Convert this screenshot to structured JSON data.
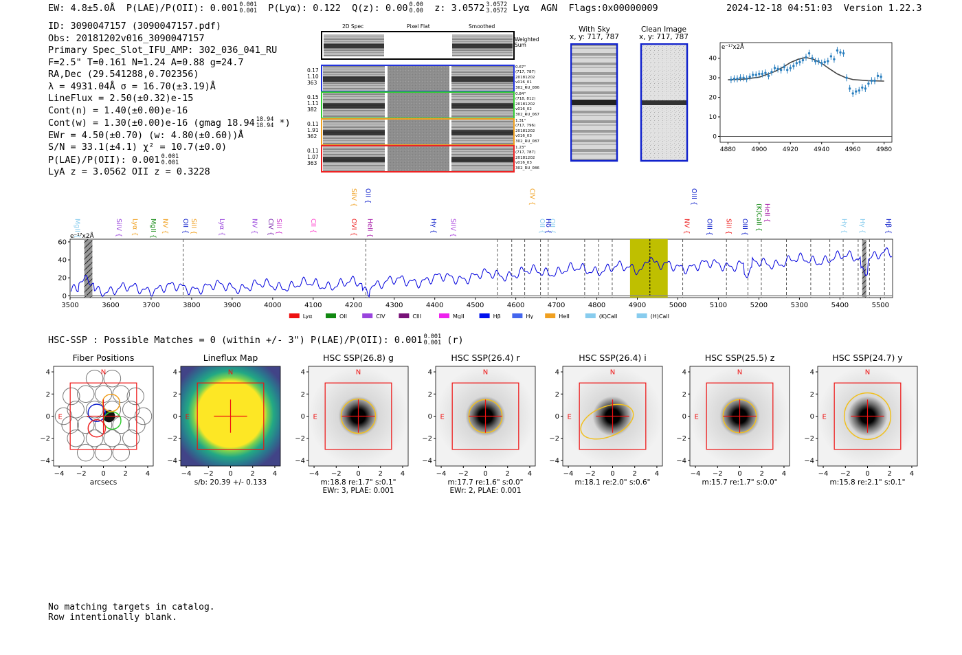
{
  "header": {
    "ew": "EW: 4.8±5.0Å",
    "plae_label": "P(LAE)/P(OII): 0.001",
    "plae_hi": "0.001",
    "plae_lo": "0.001",
    "plya": "P(Lyα): 0.122",
    "qz_label": "Q(z): 0.00",
    "qz_hi": "0.00",
    "qz_lo": "0.00",
    "z_label": "z: 3.0572",
    "z_hi": "3.0572",
    "z_lo": "3.0572",
    "line": "Lyα",
    "agn": "AGN",
    "flags": "Flags:0x00000009",
    "timestamp": "2024-12-18 04:51:03",
    "version": "Version 1.22.3"
  },
  "info": {
    "id": "ID: 3090047157 (3090047157.pdf)",
    "obs": "Obs: 20181202v016_3090047157",
    "primary": "Primary Spec_Slot_IFU_AMP: 302_036_041_RU",
    "params": "F=2.5\"  T=0.161  N=1.24  A=0.88  g=24.7",
    "radec": "RA,Dec (29.541288,0.702356)",
    "lambda": "λ = 4931.04Å   σ = 16.70(±3.19)Å",
    "lineflux": "LineFlux = 2.50(±0.32)e-15",
    "contn": "Cont(n) = 1.40(±0.00)e-16",
    "contw": "Cont(w) = 1.30(±0.00)e-16 (gmag 18.94",
    "contw_hi": "18.94",
    "contw_lo": "18.94",
    "contw_tail": "*)",
    "ewr": "EWr = 4.50(±0.70) (w: 4.80(±0.60))Å",
    "sn": "S/N = 33.1(±4.1)  χ² = 10.7(±0.0)",
    "plae": "P(LAE)/P(OII): 0.001",
    "plae_hi": "0.001",
    "plae_lo": "0.001",
    "lyaz": "LyA z = 3.0562  OII z = 0.3228"
  },
  "cutouts": {
    "col_titles": [
      "2D Spec",
      "Pixel Flat",
      "Smoothed"
    ],
    "weighted_sum": "Weighted Sum",
    "rows": [
      {
        "left": [
          "0.17",
          "1.10",
          "363"
        ],
        "right": [
          "0.67\"",
          "(717, 787)",
          "20181202",
          "v016_01",
          "302_RU_086"
        ],
        "color": "#2233dd"
      },
      {
        "left": [
          "0.15",
          "1.11",
          "382"
        ],
        "right": [
          "0.84\"",
          "(718, 812)",
          "20181202",
          "v016_02",
          "302_RU_067"
        ],
        "color": "#33cc33"
      },
      {
        "left": [
          "0.11",
          "1.91",
          "362"
        ],
        "right": [
          "1.31\"",
          "(717, 796)",
          "20181202",
          "v016_03",
          "302_RU_087"
        ],
        "color": "#f0a020"
      },
      {
        "left": [
          "0.11",
          "1.07",
          "363"
        ],
        "right": [
          "1.23\"",
          "(717, 787)",
          "20181202",
          "v016_03",
          "302_RU_086"
        ],
        "color": "#ee2222"
      }
    ],
    "with_sky_title": "With Sky",
    "with_sky_coords": "x, y: 717, 787",
    "clean_title": "Clean Image",
    "clean_coords": "x, y: 717, 787"
  },
  "fit_chart_data": {
    "type": "scatter",
    "unit_label": "e⁻¹⁷x2Å",
    "xlim": [
      4875,
      4985
    ],
    "ylim": [
      -3,
      48
    ],
    "xticks": [
      4880,
      4900,
      4920,
      4940,
      4960,
      4980
    ],
    "yticks": [
      0,
      10,
      20,
      30,
      40
    ],
    "points_x": [
      4882,
      4884,
      4886,
      4888,
      4890,
      4892,
      4894,
      4896,
      4898,
      4900,
      4902,
      4904,
      4906,
      4908,
      4910,
      4912,
      4914,
      4916,
      4918,
      4920,
      4922,
      4924,
      4926,
      4928,
      4930,
      4932,
      4934,
      4936,
      4938,
      4940,
      4942,
      4944,
      4946,
      4948,
      4950,
      4952,
      4954,
      4956,
      4958,
      4960,
      4962,
      4964,
      4966,
      4968,
      4970,
      4972,
      4974,
      4976,
      4978
    ],
    "points_y": [
      29,
      29.5,
      29.5,
      30,
      30,
      29.5,
      30.5,
      31.5,
      31.5,
      32,
      32,
      32.5,
      31,
      33,
      35,
      34.5,
      34,
      35.5,
      34,
      35,
      36,
      37.5,
      38,
      39,
      40.5,
      42.5,
      40,
      38.5,
      38.5,
      37.5,
      38,
      38.5,
      41,
      39.5,
      44,
      43,
      42.5,
      30,
      24.5,
      22,
      23,
      23.5,
      25,
      24.5,
      27,
      28.5,
      28.5,
      31,
      30.5
    ],
    "fit_x": [
      4880,
      4890,
      4900,
      4910,
      4915,
      4920,
      4925,
      4930,
      4935,
      4940,
      4945,
      4950,
      4955,
      4960,
      4970,
      4980
    ],
    "fit_y": [
      29,
      29.3,
      30.3,
      33.2,
      35.3,
      37.8,
      39.5,
      40.4,
      39.4,
      37.4,
      34.6,
      32.0,
      30.2,
      29.1,
      28.5,
      28.3
    ]
  },
  "spectrum_chart_data": {
    "type": "line",
    "unit_label": "e⁻¹⁷x2Å",
    "xlim": [
      3500,
      5530
    ],
    "ylim": [
      -2,
      63
    ],
    "xticks": [
      3500,
      3600,
      3700,
      3800,
      3900,
      4000,
      4100,
      4200,
      4300,
      4400,
      4500,
      4600,
      4700,
      4800,
      4900,
      5000,
      5100,
      5200,
      5300,
      5400,
      5500
    ],
    "yticks": [
      0,
      20,
      40,
      60
    ],
    "highlight_band": [
      4882,
      4975
    ],
    "masked_bands": [
      [
        3535,
        3555
      ],
      [
        5455,
        5465
      ]
    ],
    "emission_center": 4931,
    "vlines": [
      3779,
      4230,
      4555,
      4590,
      4622,
      4661,
      4680,
      4770,
      4805,
      4838,
      5012,
      5120,
      5173,
      5206,
      5268,
      5328,
      5375,
      5408,
      5445,
      5473,
      5510
    ],
    "line_labels": [
      {
        "x": 3508,
        "text": "MgII",
        "color": "#88ccee",
        "row": 2
      },
      {
        "x": 3610,
        "text": "SiIV",
        "color": "#9944dd",
        "row": 2
      },
      {
        "x": 3650,
        "text": "Lyα",
        "color": "#f0a020",
        "row": 2
      },
      {
        "x": 3695,
        "text": "MgII",
        "color": "#118811",
        "row": 2
      },
      {
        "x": 3725,
        "text": "NV",
        "color": "#f0a020",
        "row": 2
      },
      {
        "x": 3775,
        "text": "OII",
        "color": "#1122cc",
        "row": 2
      },
      {
        "x": 3795,
        "text": "SiII",
        "color": "#f0a020",
        "row": 2
      },
      {
        "x": 3865,
        "text": "Lyα",
        "color": "#9944dd",
        "row": 2
      },
      {
        "x": 3945,
        "text": "NV",
        "color": "#9944dd",
        "row": 2
      },
      {
        "x": 3985,
        "text": "CIV",
        "color": "#7722aa",
        "row": 2
      },
      {
        "x": 4005,
        "text": "SiII",
        "color": "#cc33cc",
        "row": 2
      },
      {
        "x": 4090,
        "text": "CII",
        "color": "#ff44cc",
        "row": 2
      },
      {
        "x": 4190,
        "text": "OVI",
        "color": "#ee2222",
        "row": 2
      },
      {
        "x": 4230,
        "text": "HeII",
        "color": "#aa22aa",
        "row": 2
      },
      {
        "x": 4190,
        "text": "SiIV",
        "color": "#f0a020",
        "row": 0
      },
      {
        "x": 4225,
        "text": "OII",
        "color": "#1122cc",
        "row": 0
      },
      {
        "x": 4387,
        "text": "Hγ",
        "color": "#1122cc",
        "row": 2
      },
      {
        "x": 4435,
        "text": "SiIV",
        "color": "#aa44dd",
        "row": 2
      },
      {
        "x": 4630,
        "text": "CIV",
        "color": "#f0a020",
        "row": 0
      },
      {
        "x": 4655,
        "text": "OII",
        "color": "#88ccee",
        "row": 2
      },
      {
        "x": 4680,
        "text": "OII",
        "color": "#88ccee",
        "row": 2
      },
      {
        "x": 4670,
        "text": "Hδ",
        "color": "#1122cc",
        "row": 2
      },
      {
        "x": 5030,
        "text": "OIII",
        "color": "#1122cc",
        "row": 0
      },
      {
        "x": 5012,
        "text": "NV",
        "color": "#ee2222",
        "row": 2
      },
      {
        "x": 5068,
        "text": "OIII",
        "color": "#1122cc",
        "row": 2
      },
      {
        "x": 5115,
        "text": "SiII",
        "color": "#ee2222",
        "row": 2
      },
      {
        "x": 5190,
        "text": "(K)CaII",
        "color": "#118811",
        "row": 1
      },
      {
        "x": 5210,
        "text": "HeII",
        "color": "#aa22aa",
        "row": 1
      },
      {
        "x": 5155,
        "text": "OIII",
        "color": "#1122cc",
        "row": 2
      },
      {
        "x": 5400,
        "text": "Hγ",
        "color": "#88ccee",
        "row": 2
      },
      {
        "x": 5445,
        "text": "Hγ",
        "color": "#88ccee",
        "row": 2
      },
      {
        "x": 5510,
        "text": "Hβ",
        "color": "#1122cc",
        "row": 2
      }
    ],
    "legend": [
      {
        "label": "Lyα",
        "color": "#ee1111"
      },
      {
        "label": "OII",
        "color": "#118811"
      },
      {
        "label": "CIV",
        "color": "#9944dd"
      },
      {
        "label": "CIII",
        "color": "#771177"
      },
      {
        "label": "MgII",
        "color": "#ee22ee"
      },
      {
        "label": "Hβ",
        "color": "#0011ee"
      },
      {
        "label": "Hγ",
        "color": "#4466ee"
      },
      {
        "label": "HeII",
        "color": "#f0a020"
      },
      {
        "label": "(K)CaII",
        "color": "#88ccee"
      },
      {
        "label": "(H)CaII",
        "color": "#88ccee"
      }
    ]
  },
  "hsc": {
    "summary": "HSC-SSP : Possible Matches = 0 (within +/- 3\")  P(LAE)/P(OII): 0.001",
    "summary_hi": "0.001",
    "summary_lo": "0.001",
    "summary_tail": "(r)",
    "compass_n": "N",
    "compass_e": "E",
    "axis_ticks": [
      "−4",
      "−2",
      "0",
      "2",
      "4"
    ],
    "panels": [
      {
        "title": "Fiber Positions",
        "caption1": "arcsecs",
        "caption2": ""
      },
      {
        "title": "Lineflux Map",
        "caption1": "s/b: 20.39 +/- 0.133",
        "caption2": ""
      },
      {
        "title": "HSC SSP(26.8) g",
        "caption1": "m:18.8  re:1.7\"  s:0.1\"",
        "caption2": "EWr: 3, PLAE: 0.001"
      },
      {
        "title": "HSC SSP(26.4) r",
        "caption1": "m:17.7  re:1.6\"  s:0.0\"",
        "caption2": "EWr: 2, PLAE: 0.001"
      },
      {
        "title": "HSC SSP(26.4) i",
        "caption1": "m:18.1  re:2.0\"  s:0.6\"",
        "caption2": ""
      },
      {
        "title": "HSC SSP(25.5) z",
        "caption1": "m:15.7  re:1.7\"  s:0.0\"",
        "caption2": ""
      },
      {
        "title": "HSC SSP(24.7) y",
        "caption1": "m:15.8  re:2.1\"  s:0.1\"",
        "caption2": ""
      }
    ]
  },
  "footer": {
    "line1": "No matching targets in catalog.",
    "line2": "Row intentionally blank."
  }
}
